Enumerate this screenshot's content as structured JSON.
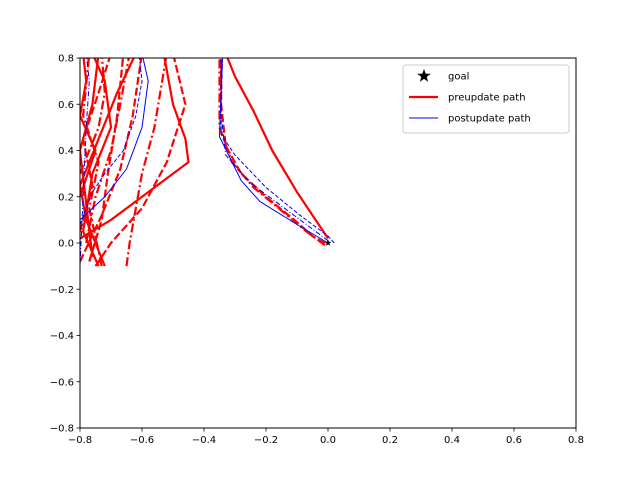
{
  "chart_data": {
    "type": "line",
    "title": "",
    "xlabel": "",
    "ylabel": "",
    "xlim": [
      -0.8,
      0.8
    ],
    "ylim": [
      -0.8,
      0.8
    ],
    "xticks": [
      -0.8,
      -0.6,
      -0.4,
      -0.2,
      0.0,
      0.2,
      0.4,
      0.6,
      0.8
    ],
    "yticks": [
      -0.8,
      -0.6,
      -0.4,
      -0.2,
      0.0,
      0.2,
      0.4,
      0.6,
      0.8
    ],
    "xtick_labels": [
      "−0.8",
      "−0.6",
      "−0.4",
      "−0.2",
      "0.0",
      "0.2",
      "0.4",
      "0.6",
      "0.8"
    ],
    "ytick_labels": [
      "−0.8",
      "−0.6",
      "−0.4",
      "−0.2",
      "0.0",
      "0.2",
      "0.4",
      "0.6",
      "0.8"
    ],
    "grid": false,
    "legend_position": "top-right",
    "legend": [
      {
        "label": "goal",
        "marker": "star",
        "color": "#000000"
      },
      {
        "label": "preupdate path",
        "line": "solid",
        "width": "thick",
        "color": "#ff0000"
      },
      {
        "label": "postupdate path",
        "line": "solid",
        "width": "thin",
        "color": "#0000ff"
      }
    ],
    "goal": {
      "x": 0.0,
      "y": 0.0
    },
    "series": [
      {
        "group": "preupdate",
        "style": "solid",
        "color": "#ff0000",
        "points": [
          [
            0.0,
            0.02
          ],
          [
            -0.03,
            0.08
          ],
          [
            -0.1,
            0.22
          ],
          [
            -0.18,
            0.4
          ],
          [
            -0.24,
            0.57
          ],
          [
            -0.3,
            0.72
          ],
          [
            -0.33,
            0.82
          ]
        ]
      },
      {
        "group": "preupdate",
        "style": "dashed",
        "color": "#ff0000",
        "points": [
          [
            -0.01,
            0.0
          ],
          [
            -0.05,
            0.03
          ],
          [
            -0.1,
            0.09
          ],
          [
            -0.2,
            0.2
          ],
          [
            -0.28,
            0.3
          ],
          [
            -0.33,
            0.42
          ],
          [
            -0.345,
            0.6
          ],
          [
            -0.345,
            0.82
          ]
        ]
      },
      {
        "group": "preupdate",
        "style": "dashdot",
        "color": "#ff0000",
        "points": [
          [
            -0.01,
            -0.01
          ],
          [
            -0.07,
            0.05
          ],
          [
            -0.15,
            0.14
          ],
          [
            -0.24,
            0.24
          ],
          [
            -0.31,
            0.35
          ],
          [
            -0.35,
            0.5
          ],
          [
            -0.35,
            0.82
          ]
        ]
      },
      {
        "group": "postupdate",
        "style": "dashed",
        "color": "#0000ff",
        "points": [
          [
            0.02,
            0.0
          ],
          [
            0.0,
            0.03
          ],
          [
            -0.09,
            0.12
          ],
          [
            -0.2,
            0.24
          ],
          [
            -0.3,
            0.38
          ],
          [
            -0.345,
            0.47
          ],
          [
            -0.345,
            0.82
          ]
        ]
      },
      {
        "group": "postupdate",
        "style": "dashdot",
        "color": "#0000ff",
        "points": [
          [
            0.0,
            0.01
          ],
          [
            -0.05,
            0.06
          ],
          [
            -0.14,
            0.15
          ],
          [
            -0.25,
            0.26
          ],
          [
            -0.33,
            0.38
          ],
          [
            -0.345,
            0.55
          ],
          [
            -0.34,
            0.82
          ]
        ]
      },
      {
        "group": "postupdate",
        "style": "solid",
        "color": "#0000ff",
        "points": [
          [
            0.0,
            0.0
          ],
          [
            -0.1,
            0.08
          ],
          [
            -0.22,
            0.18
          ],
          [
            -0.28,
            0.27
          ],
          [
            -0.35,
            0.46
          ],
          [
            -0.34,
            0.82
          ]
        ]
      },
      {
        "group": "preupdate",
        "style": "solid",
        "color": "#ff0000",
        "points": [
          [
            -0.8,
            0.02
          ],
          [
            -0.7,
            0.1
          ],
          [
            -0.6,
            0.2
          ],
          [
            -0.45,
            0.35
          ],
          [
            -0.46,
            0.45
          ],
          [
            -0.5,
            0.6
          ],
          [
            -0.53,
            0.82
          ]
        ]
      },
      {
        "group": "preupdate",
        "style": "dashed",
        "color": "#ff0000",
        "points": [
          [
            -0.75,
            -0.1
          ],
          [
            -0.7,
            0.0
          ],
          [
            -0.6,
            0.15
          ],
          [
            -0.52,
            0.35
          ],
          [
            -0.46,
            0.6
          ],
          [
            -0.5,
            0.82
          ]
        ]
      },
      {
        "group": "preupdate",
        "style": "dashdot",
        "color": "#ff0000",
        "points": [
          [
            -0.65,
            -0.1
          ],
          [
            -0.64,
            0.0
          ],
          [
            -0.6,
            0.3
          ],
          [
            -0.56,
            0.5
          ],
          [
            -0.52,
            0.82
          ]
        ]
      },
      {
        "group": "preupdate",
        "style": "solid",
        "color": "#ff0000",
        "points": [
          [
            -0.72,
            -0.1
          ],
          [
            -0.78,
            0.1
          ],
          [
            -0.8,
            0.25
          ],
          [
            -0.74,
            0.45
          ],
          [
            -0.68,
            0.65
          ],
          [
            -0.62,
            0.82
          ]
        ]
      },
      {
        "group": "preupdate",
        "style": "dashed",
        "color": "#ff0000",
        "points": [
          [
            -0.8,
            -0.08
          ],
          [
            -0.73,
            0.12
          ],
          [
            -0.67,
            0.32
          ],
          [
            -0.63,
            0.55
          ],
          [
            -0.6,
            0.82
          ]
        ]
      },
      {
        "group": "preupdate",
        "style": "dashdot",
        "color": "#ff0000",
        "points": [
          [
            -0.78,
            0.0
          ],
          [
            -0.75,
            0.2
          ],
          [
            -0.7,
            0.4
          ],
          [
            -0.67,
            0.6
          ],
          [
            -0.64,
            0.82
          ]
        ]
      },
      {
        "group": "preupdate",
        "style": "solid",
        "color": "#ff0000",
        "points": [
          [
            -0.74,
            -0.1
          ],
          [
            -0.79,
            0.05
          ],
          [
            -0.76,
            0.3
          ],
          [
            -0.7,
            0.5
          ],
          [
            -0.72,
            0.7
          ],
          [
            -0.76,
            0.82
          ]
        ]
      },
      {
        "group": "preupdate",
        "style": "dashed",
        "color": "#ff0000",
        "points": [
          [
            -0.8,
            0.05
          ],
          [
            -0.76,
            0.25
          ],
          [
            -0.79,
            0.45
          ],
          [
            -0.74,
            0.65
          ],
          [
            -0.7,
            0.82
          ]
        ]
      },
      {
        "group": "preupdate",
        "style": "dashdot",
        "color": "#ff0000",
        "points": [
          [
            -0.73,
            -0.1
          ],
          [
            -0.77,
            0.15
          ],
          [
            -0.74,
            0.35
          ],
          [
            -0.79,
            0.55
          ],
          [
            -0.77,
            0.82
          ]
        ]
      },
      {
        "group": "preupdate",
        "style": "solid",
        "color": "#ff0000",
        "points": [
          [
            -0.8,
            0.2
          ],
          [
            -0.75,
            0.4
          ],
          [
            -0.8,
            0.55
          ],
          [
            -0.78,
            0.7
          ],
          [
            -0.79,
            0.82
          ]
        ]
      },
      {
        "group": "preupdate",
        "style": "dashed",
        "color": "#ff0000",
        "points": [
          [
            -0.77,
            -0.08
          ],
          [
            -0.73,
            0.1
          ],
          [
            -0.71,
            0.3
          ],
          [
            -0.68,
            0.55
          ],
          [
            -0.66,
            0.82
          ]
        ]
      },
      {
        "group": "preupdate",
        "style": "dashdot",
        "color": "#ff0000",
        "points": [
          [
            -0.8,
            0.3
          ],
          [
            -0.74,
            0.5
          ],
          [
            -0.72,
            0.65
          ],
          [
            -0.73,
            0.82
          ]
        ]
      },
      {
        "group": "preupdate",
        "style": "solid",
        "color": "#ff0000",
        "points": [
          [
            -0.76,
            -0.06
          ],
          [
            -0.8,
            0.4
          ],
          [
            -0.76,
            0.6
          ],
          [
            -0.74,
            0.82
          ]
        ]
      },
      {
        "group": "postupdate",
        "style": "dashdot",
        "color": "#0000ff",
        "points": [
          [
            -0.8,
            -0.1
          ],
          [
            -0.79,
            0.2
          ],
          [
            -0.78,
            0.5
          ],
          [
            -0.77,
            0.7
          ],
          [
            -0.78,
            0.82
          ]
        ]
      },
      {
        "group": "postupdate",
        "style": "dashed",
        "color": "#0000ff",
        "points": [
          [
            -0.8,
            0.08
          ],
          [
            -0.76,
            0.22
          ],
          [
            -0.72,
            0.3
          ],
          [
            -0.66,
            0.4
          ],
          [
            -0.62,
            0.55
          ],
          [
            -0.6,
            0.7
          ],
          [
            -0.61,
            0.82
          ]
        ]
      },
      {
        "group": "postupdate",
        "style": "solid",
        "color": "#0000ff",
        "points": [
          [
            -0.8,
            0.1
          ],
          [
            -0.72,
            0.2
          ],
          [
            -0.65,
            0.32
          ],
          [
            -0.6,
            0.5
          ],
          [
            -0.58,
            0.7
          ],
          [
            -0.6,
            0.82
          ]
        ]
      }
    ]
  }
}
